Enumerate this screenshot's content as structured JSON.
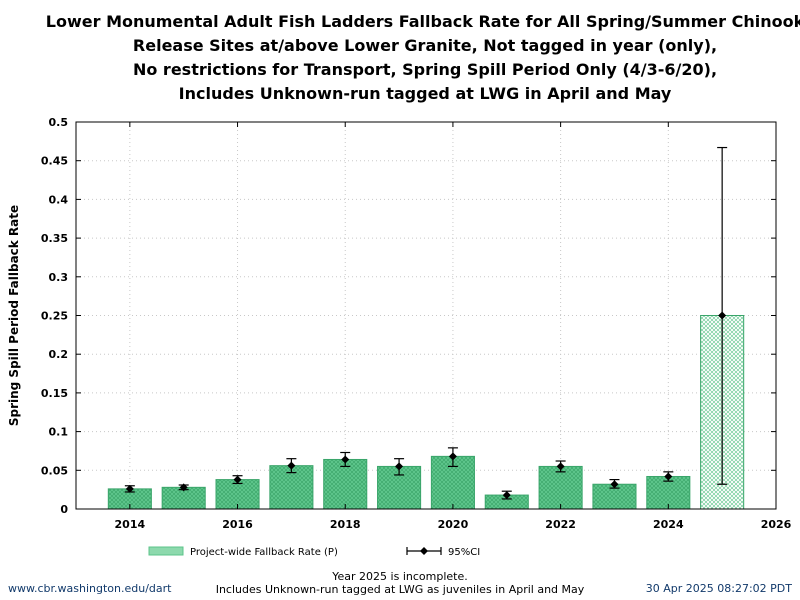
{
  "chart_data": {
    "type": "bar",
    "title_lines": [
      "Lower Monumental Adult Fish Ladders Fallback Rate for All Spring/Summer Chinook",
      "Release Sites at/above Lower Granite, Not tagged in year (only),",
      "No restrictions for Transport, Spring Spill Period Only (4/3-6/20),",
      "Includes Unknown-run tagged at LWG in April and May"
    ],
    "ylabel": "Spring Spill Period Fallback Rate",
    "xlabel": "",
    "xlim": [
      2013,
      2026
    ],
    "ylim": [
      0,
      0.5
    ],
    "x_ticks": [
      "2014",
      "2016",
      "2018",
      "2020",
      "2022",
      "2024",
      "2026"
    ],
    "y_ticks": [
      "0",
      "0.05",
      "0.1",
      "0.15",
      "0.2",
      "0.25",
      "0.3",
      "0.35",
      "0.4",
      "0.45",
      "0.5"
    ],
    "grid": true,
    "series": [
      {
        "name": "Project-wide Fallback Rate (P)",
        "type": "bar",
        "color": "#5cc48a",
        "points": [
          {
            "x": 2014,
            "y": 0.026,
            "incomplete": false
          },
          {
            "x": 2015,
            "y": 0.028,
            "incomplete": false
          },
          {
            "x": 2016,
            "y": 0.038,
            "incomplete": false
          },
          {
            "x": 2017,
            "y": 0.056,
            "incomplete": false
          },
          {
            "x": 2018,
            "y": 0.064,
            "incomplete": false
          },
          {
            "x": 2019,
            "y": 0.055,
            "incomplete": false
          },
          {
            "x": 2020,
            "y": 0.068,
            "incomplete": false
          },
          {
            "x": 2021,
            "y": 0.018,
            "incomplete": false
          },
          {
            "x": 2022,
            "y": 0.055,
            "incomplete": false
          },
          {
            "x": 2023,
            "y": 0.032,
            "incomplete": false
          },
          {
            "x": 2024,
            "y": 0.042,
            "incomplete": false
          },
          {
            "x": 2025,
            "y": 0.25,
            "incomplete": true
          }
        ]
      },
      {
        "name": "95%CI",
        "type": "errorbar",
        "color": "#000000",
        "points": [
          {
            "x": 2014,
            "y": 0.026,
            "low": 0.022,
            "high": 0.03
          },
          {
            "x": 2015,
            "y": 0.028,
            "low": 0.025,
            "high": 0.031
          },
          {
            "x": 2016,
            "y": 0.038,
            "low": 0.033,
            "high": 0.043
          },
          {
            "x": 2017,
            "y": 0.056,
            "low": 0.047,
            "high": 0.065
          },
          {
            "x": 2018,
            "y": 0.064,
            "low": 0.055,
            "high": 0.073
          },
          {
            "x": 2019,
            "y": 0.055,
            "low": 0.044,
            "high": 0.065
          },
          {
            "x": 2020,
            "y": 0.068,
            "low": 0.055,
            "high": 0.079
          },
          {
            "x": 2021,
            "y": 0.018,
            "low": 0.013,
            "high": 0.023
          },
          {
            "x": 2022,
            "y": 0.055,
            "low": 0.048,
            "high": 0.062
          },
          {
            "x": 2023,
            "y": 0.032,
            "low": 0.027,
            "high": 0.038
          },
          {
            "x": 2024,
            "y": 0.042,
            "low": 0.036,
            "high": 0.048
          },
          {
            "x": 2025,
            "y": 0.25,
            "low": 0.032,
            "high": 0.467
          }
        ]
      }
    ],
    "legend": {
      "placement": "bottom",
      "bar_label": "Project-wide Fallback Rate (P)",
      "ci_label": "95%CI"
    }
  },
  "footer": {
    "left": "www.cbr.washington.edu/dart",
    "right": "30 Apr 2025 08:27:02 PDT",
    "center_lines": [
      "Year 2025 is incomplete.",
      "Includes Unknown-run tagged at LWG as juveniles in April and May"
    ]
  }
}
